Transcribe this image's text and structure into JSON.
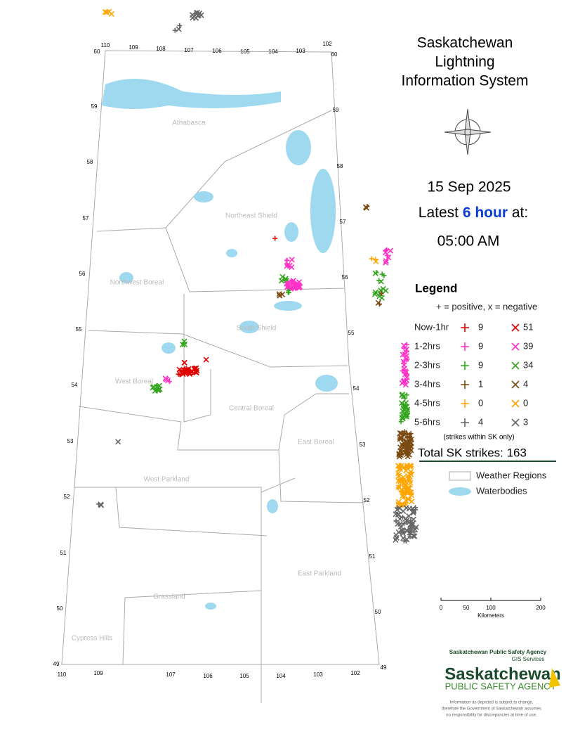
{
  "title": [
    "Saskatchewan",
    "Lightning",
    "Information System"
  ],
  "date": "15 Sep 2025",
  "period": {
    "prefix": "Latest",
    "highlight": "6 hour",
    "suffix": "at:",
    "time": "05:00 AM"
  },
  "legend": {
    "title": "Legend",
    "note": "+ = positive, x = negative",
    "rows": [
      {
        "label": "Now-1hr",
        "positive": 9,
        "negative": 51,
        "color": "#e00000"
      },
      {
        "label": "1-2hrs",
        "positive": 9,
        "negative": 39,
        "color": "#ff2fc8"
      },
      {
        "label": "2-3hrs",
        "positive": 9,
        "negative": 34,
        "color": "#33a51f"
      },
      {
        "label": "3-4hrs",
        "positive": 1,
        "negative": 4,
        "color": "#7a4a12"
      },
      {
        "label": "4-5hrs",
        "positive": 0,
        "negative": 0,
        "color": "#ffa500"
      },
      {
        "label": "5-6hrs",
        "positive": 4,
        "negative": 3,
        "color": "#666666"
      }
    ],
    "scope": "(strikes within SK only)",
    "total": "Total SK strikes: 163",
    "weather_regions": "Weather Regions",
    "waterbodies": "Waterbodies"
  },
  "scale": {
    "ticks": [
      "0",
      "50",
      "100",
      "200"
    ],
    "unit": "Kilometers"
  },
  "agency": {
    "line1": "Saskatchewan Public Safety Agency",
    "line2": "GIS  Services",
    "logo_top": "Saskatchewan",
    "logo_bottom": "PUBLIC SAFETY AGENCY"
  },
  "disclaimer": [
    "Information as depicted is subject to change,",
    "therefore the Government of Saskatchewan assumes",
    "no responsibility for discrepancies at time of use."
  ],
  "regions": [
    "Athabasca",
    "Northeast Shield",
    "Northwest Boreal",
    "South Shield",
    "West Boreal",
    "Central Boreal",
    "East Boreal",
    "West Parkland",
    "East Parkland",
    "Grassland",
    "Cypress Hills"
  ],
  "lat_left": [
    "60",
    "59",
    "58",
    "57",
    "56",
    "55",
    "54",
    "53",
    "52",
    "51",
    "50",
    "49"
  ],
  "lat_right": [
    "60",
    "59",
    "58",
    "57",
    "56",
    "55",
    "54",
    "53",
    "52",
    "51",
    "50",
    "49"
  ],
  "lon_top": [
    "110",
    "109",
    "108",
    "107",
    "106",
    "105",
    "104",
    "103",
    "102"
  ],
  "lon_bottom": [
    "110",
    "109",
    "107",
    "106",
    "105",
    "104",
    "103",
    "102"
  ]
}
